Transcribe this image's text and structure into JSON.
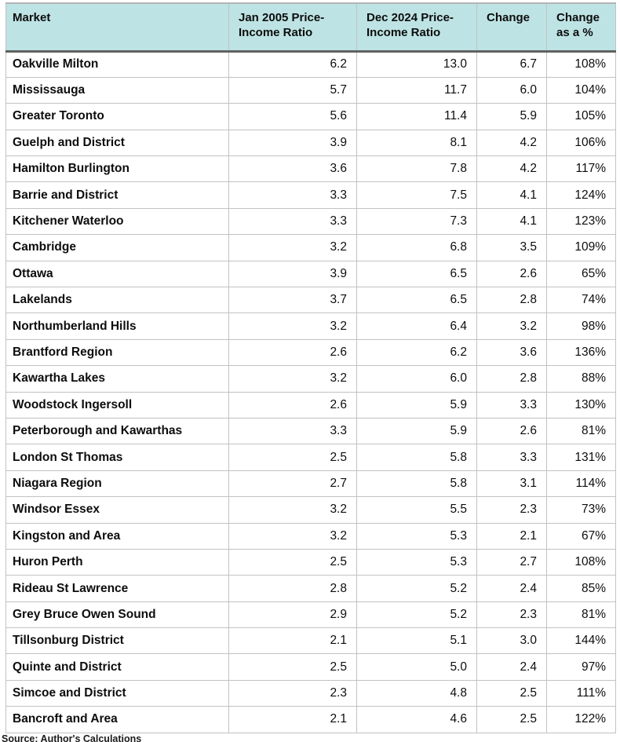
{
  "chart_data": {
    "type": "table",
    "title": "",
    "columns": [
      "Market",
      "Jan 2005 Price-Income Ratio",
      "Dec 2024 Price-Income Ratio",
      "Change",
      "Change as a %"
    ],
    "rows": [
      {
        "market": "Oakville Milton",
        "jan_2005_ratio": "6.2",
        "dec_2024_ratio": "13.0",
        "change": "6.7",
        "change_pct": "108%"
      },
      {
        "market": "Mississauga",
        "jan_2005_ratio": "5.7",
        "dec_2024_ratio": "11.7",
        "change": "6.0",
        "change_pct": "104%"
      },
      {
        "market": "Greater Toronto",
        "jan_2005_ratio": "5.6",
        "dec_2024_ratio": "11.4",
        "change": "5.9",
        "change_pct": "105%"
      },
      {
        "market": "Guelph and District",
        "jan_2005_ratio": "3.9",
        "dec_2024_ratio": "8.1",
        "change": "4.2",
        "change_pct": "106%"
      },
      {
        "market": "Hamilton Burlington",
        "jan_2005_ratio": "3.6",
        "dec_2024_ratio": "7.8",
        "change": "4.2",
        "change_pct": "117%"
      },
      {
        "market": "Barrie and District",
        "jan_2005_ratio": "3.3",
        "dec_2024_ratio": "7.5",
        "change": "4.1",
        "change_pct": "124%"
      },
      {
        "market": "Kitchener Waterloo",
        "jan_2005_ratio": "3.3",
        "dec_2024_ratio": "7.3",
        "change": "4.1",
        "change_pct": "123%"
      },
      {
        "market": "Cambridge",
        "jan_2005_ratio": "3.2",
        "dec_2024_ratio": "6.8",
        "change": "3.5",
        "change_pct": "109%"
      },
      {
        "market": "Ottawa",
        "jan_2005_ratio": "3.9",
        "dec_2024_ratio": "6.5",
        "change": "2.6",
        "change_pct": "65%"
      },
      {
        "market": "Lakelands",
        "jan_2005_ratio": "3.7",
        "dec_2024_ratio": "6.5",
        "change": "2.8",
        "change_pct": "74%"
      },
      {
        "market": "Northumberland Hills",
        "jan_2005_ratio": "3.2",
        "dec_2024_ratio": "6.4",
        "change": "3.2",
        "change_pct": "98%"
      },
      {
        "market": "Brantford Region",
        "jan_2005_ratio": "2.6",
        "dec_2024_ratio": "6.2",
        "change": "3.6",
        "change_pct": "136%"
      },
      {
        "market": "Kawartha Lakes",
        "jan_2005_ratio": "3.2",
        "dec_2024_ratio": "6.0",
        "change": "2.8",
        "change_pct": "88%"
      },
      {
        "market": "Woodstock Ingersoll",
        "jan_2005_ratio": "2.6",
        "dec_2024_ratio": "5.9",
        "change": "3.3",
        "change_pct": "130%"
      },
      {
        "market": "Peterborough and Kawarthas",
        "jan_2005_ratio": "3.3",
        "dec_2024_ratio": "5.9",
        "change": "2.6",
        "change_pct": "81%"
      },
      {
        "market": "London St Thomas",
        "jan_2005_ratio": "2.5",
        "dec_2024_ratio": "5.8",
        "change": "3.3",
        "change_pct": "131%"
      },
      {
        "market": "Niagara Region",
        "jan_2005_ratio": "2.7",
        "dec_2024_ratio": "5.8",
        "change": "3.1",
        "change_pct": "114%"
      },
      {
        "market": "Windsor Essex",
        "jan_2005_ratio": "3.2",
        "dec_2024_ratio": "5.5",
        "change": "2.3",
        "change_pct": "73%"
      },
      {
        "market": "Kingston and Area",
        "jan_2005_ratio": "3.2",
        "dec_2024_ratio": "5.3",
        "change": "2.1",
        "change_pct": "67%"
      },
      {
        "market": "Huron Perth",
        "jan_2005_ratio": "2.5",
        "dec_2024_ratio": "5.3",
        "change": "2.7",
        "change_pct": "108%"
      },
      {
        "market": "Rideau St Lawrence",
        "jan_2005_ratio": "2.8",
        "dec_2024_ratio": "5.2",
        "change": "2.4",
        "change_pct": "85%"
      },
      {
        "market": "Grey Bruce Owen Sound",
        "jan_2005_ratio": "2.9",
        "dec_2024_ratio": "5.2",
        "change": "2.3",
        "change_pct": "81%"
      },
      {
        "market": "Tillsonburg District",
        "jan_2005_ratio": "2.1",
        "dec_2024_ratio": "5.1",
        "change": "3.0",
        "change_pct": "144%"
      },
      {
        "market": "Quinte and District",
        "jan_2005_ratio": "2.5",
        "dec_2024_ratio": "5.0",
        "change": "2.4",
        "change_pct": "97%"
      },
      {
        "market": "Simcoe and District",
        "jan_2005_ratio": "2.3",
        "dec_2024_ratio": "4.8",
        "change": "2.5",
        "change_pct": "111%"
      },
      {
        "market": "Bancroft and Area",
        "jan_2005_ratio": "2.1",
        "dec_2024_ratio": "4.6",
        "change": "2.5",
        "change_pct": "122%"
      }
    ],
    "layout_hints": {
      "header_background": "#bee3e4",
      "grid": "on",
      "numeric_columns_right_aligned": true,
      "market_column_bold": true
    }
  },
  "footer": {
    "source": "Source: Author's Calculations"
  },
  "colors": {
    "header_bg": "#bee3e4",
    "header_bottom_border": "#616161",
    "grid_border": "#c2c2c2",
    "text": "#0d0d0d"
  }
}
